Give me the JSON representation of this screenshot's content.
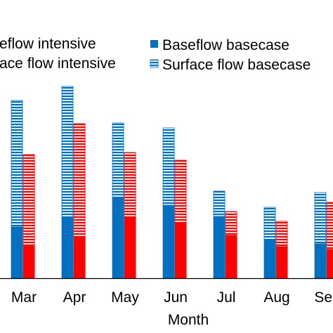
{
  "chart_data": {
    "type": "bar",
    "stacked": true,
    "title": "",
    "xlabel": "Month",
    "ylabel": "",
    "grid": false,
    "legend_position": "top",
    "categories": [
      "Mar",
      "Apr",
      "May",
      "Jun",
      "Jul",
      "Aug",
      "Sep"
    ],
    "groups": [
      {
        "name": "basecase",
        "color": "#0070C0",
        "series": [
          {
            "name": "Baseflow basecase",
            "fill": "solid",
            "values": [
              73,
              87,
              114,
              104,
              88,
              55,
              49
            ]
          },
          {
            "name": "Surface flow basecase",
            "fill": "horizontal-stripes",
            "values": [
              180,
              186,
              107,
              110,
              36,
              46,
              73
            ]
          }
        ]
      },
      {
        "name": "intensive",
        "color": "#FF0000",
        "series": [
          {
            "name": "Baseflow intensive",
            "fill": "solid",
            "values": [
              47,
              59,
              86,
              79,
              61,
              45,
              41
            ]
          },
          {
            "name": "Surface flow intensive",
            "fill": "horizontal-stripes",
            "values": [
              129,
              161,
              93,
              89,
              34,
              36,
              67
            ]
          }
        ]
      }
    ],
    "legend": [
      {
        "label": "Baseflow basecase",
        "fill": "solid",
        "color": "#0070C0"
      },
      {
        "label": "Surface flow basecase",
        "fill": "horizontal-stripes",
        "color": "#0070C0"
      },
      {
        "label": "Baseflow intensive",
        "fill": "solid",
        "color": "#FF0000"
      },
      {
        "label": "Surface flow intensive",
        "fill": "horizontal-stripes",
        "color": "#FF0000"
      }
    ],
    "legend_visible_text": {
      "intensive_baseflow": "eflow intensive",
      "intensive_surface": "ace flow intensive"
    }
  }
}
